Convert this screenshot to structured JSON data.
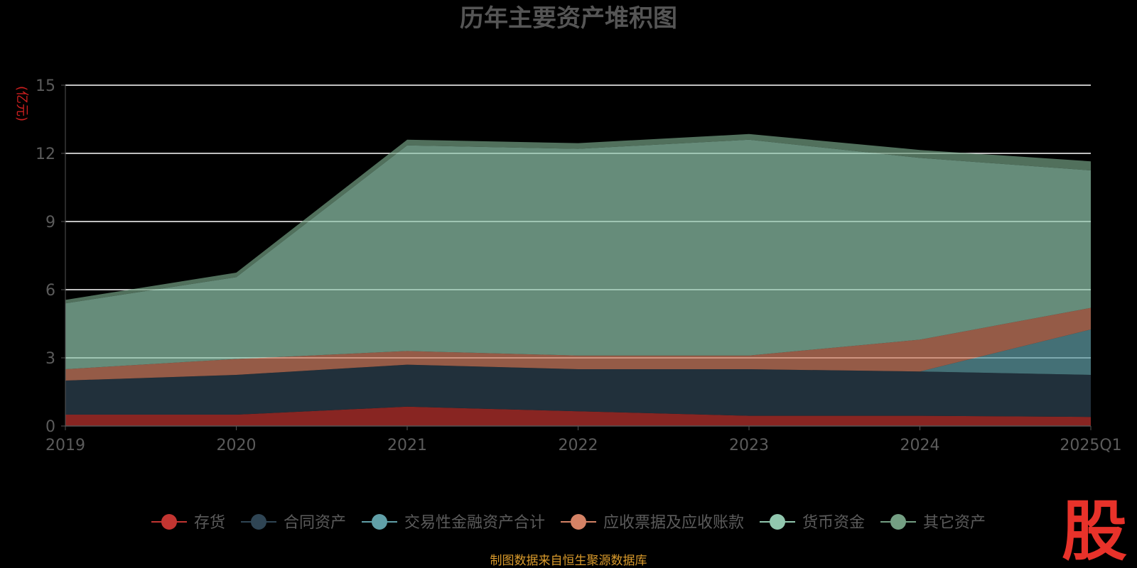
{
  "chart_data": {
    "type": "area",
    "stacked": true,
    "title": "历年主要资产堆积图",
    "unit": "(亿元)",
    "categories": [
      "2019",
      "2020",
      "2021",
      "2022",
      "2023",
      "2024",
      "2025Q1"
    ],
    "ylim": [
      0,
      15
    ],
    "yticks": [
      0,
      3,
      6,
      9,
      12,
      15
    ],
    "grid": true,
    "legend_position": "bottom",
    "series": [
      {
        "name": "存货",
        "color": "#c23531",
        "values": [
          0.5,
          0.5,
          0.85,
          0.65,
          0.45,
          0.45,
          0.4
        ]
      },
      {
        "name": "合同资产",
        "color": "#2f4554",
        "values": [
          1.5,
          1.75,
          1.85,
          1.85,
          2.05,
          1.95,
          1.85
        ]
      },
      {
        "name": "交易性金融资产合计",
        "color": "#61a0a8",
        "values": [
          0,
          0,
          0,
          0,
          0,
          0,
          2.0
        ]
      },
      {
        "name": "应收票据及应收账款",
        "color": "#d48265",
        "values": [
          0.5,
          0.7,
          0.6,
          0.6,
          0.6,
          1.4,
          0.95
        ]
      },
      {
        "name": "货币资金",
        "color": "#91c7ae",
        "values": [
          2.9,
          3.6,
          9.05,
          9.1,
          9.5,
          8.0,
          6.05
        ]
      },
      {
        "name": "其它资产",
        "color": "#749f83",
        "values": [
          0.15,
          0.2,
          0.25,
          0.25,
          0.25,
          0.35,
          0.4
        ]
      }
    ]
  },
  "footer": {
    "source": "制图数据来自恒生聚源数据库",
    "logo_text": "股"
  }
}
